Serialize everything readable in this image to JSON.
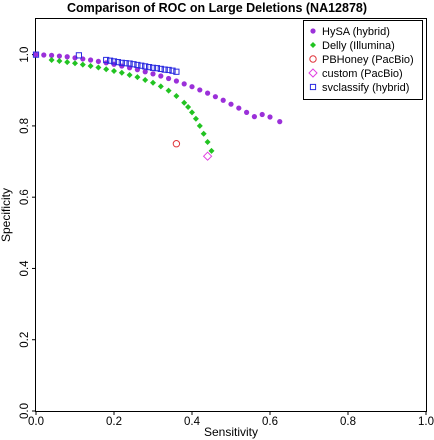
{
  "chart_data": {
    "type": "scatter",
    "title": "Comparison of ROC on Large Deletions (NA12878)",
    "xlabel": "Sensitivity",
    "ylabel": "Specificity",
    "xlim": [
      0,
      1
    ],
    "ylim": [
      0,
      1.1
    ],
    "xticks": [
      "0.0",
      "0.2",
      "0.4",
      "0.6",
      "0.8",
      "1.0"
    ],
    "yticks": [
      "0.0",
      "0.2",
      "0.4",
      "0.6",
      "0.8",
      "1.0"
    ],
    "grid": false,
    "legend_position": "top-right",
    "series": [
      {
        "name": "HySA (hybrid)",
        "color": "#9b30d9",
        "marker": "circle-filled",
        "x": [
          0.0,
          0.02,
          0.04,
          0.06,
          0.08,
          0.1,
          0.12,
          0.14,
          0.16,
          0.18,
          0.2,
          0.22,
          0.24,
          0.26,
          0.28,
          0.3,
          0.32,
          0.34,
          0.36,
          0.38,
          0.4,
          0.42,
          0.44,
          0.46,
          0.48,
          0.5,
          0.52,
          0.54,
          0.56,
          0.58,
          0.6,
          0.625
        ],
        "y": [
          1.0,
          0.999,
          0.998,
          0.996,
          0.994,
          0.991,
          0.988,
          0.985,
          0.981,
          0.977,
          0.973,
          0.968,
          0.963,
          0.958,
          0.952,
          0.946,
          0.94,
          0.933,
          0.926,
          0.918,
          0.91,
          0.901,
          0.892,
          0.882,
          0.872,
          0.861,
          0.85,
          0.838,
          0.826,
          0.832,
          0.825,
          0.812
        ]
      },
      {
        "name": "Delly (Illumina)",
        "color": "#22c322",
        "marker": "diamond-filled",
        "x": [
          0.04,
          0.06,
          0.08,
          0.1,
          0.12,
          0.14,
          0.16,
          0.18,
          0.2,
          0.22,
          0.24,
          0.26,
          0.28,
          0.3,
          0.32,
          0.34,
          0.36,
          0.38,
          0.39,
          0.4,
          0.41,
          0.42,
          0.43,
          0.44,
          0.45
        ],
        "y": [
          0.985,
          0.982,
          0.979,
          0.976,
          0.972,
          0.968,
          0.964,
          0.959,
          0.954,
          0.949,
          0.943,
          0.937,
          0.929,
          0.921,
          0.911,
          0.899,
          0.884,
          0.865,
          0.853,
          0.838,
          0.82,
          0.8,
          0.778,
          0.755,
          0.73
        ]
      },
      {
        "name": "PBHoney (PacBio)",
        "color": "#e0353b",
        "marker": "circle-open",
        "x": [
          0.36
        ],
        "y": [
          0.75
        ]
      },
      {
        "name": "custom (PacBio)",
        "color": "#e040e0",
        "marker": "diamond-open",
        "x": [
          0.44
        ],
        "y": [
          0.715
        ]
      },
      {
        "name": "svclassify (hybrid)",
        "color": "#2a2ae0",
        "marker": "square-open",
        "x": [
          0.0,
          0.11,
          0.18,
          0.19,
          0.2,
          0.21,
          0.22,
          0.23,
          0.24,
          0.25,
          0.26,
          0.27,
          0.28,
          0.29,
          0.3,
          0.31,
          0.32,
          0.33,
          0.34,
          0.35,
          0.36
        ],
        "y": [
          1.0,
          0.998,
          0.985,
          0.983,
          0.981,
          0.979,
          0.977,
          0.976,
          0.975,
          0.973,
          0.971,
          0.969,
          0.967,
          0.965,
          0.963,
          0.962,
          0.96,
          0.958,
          0.957,
          0.955,
          0.952
        ]
      }
    ]
  }
}
